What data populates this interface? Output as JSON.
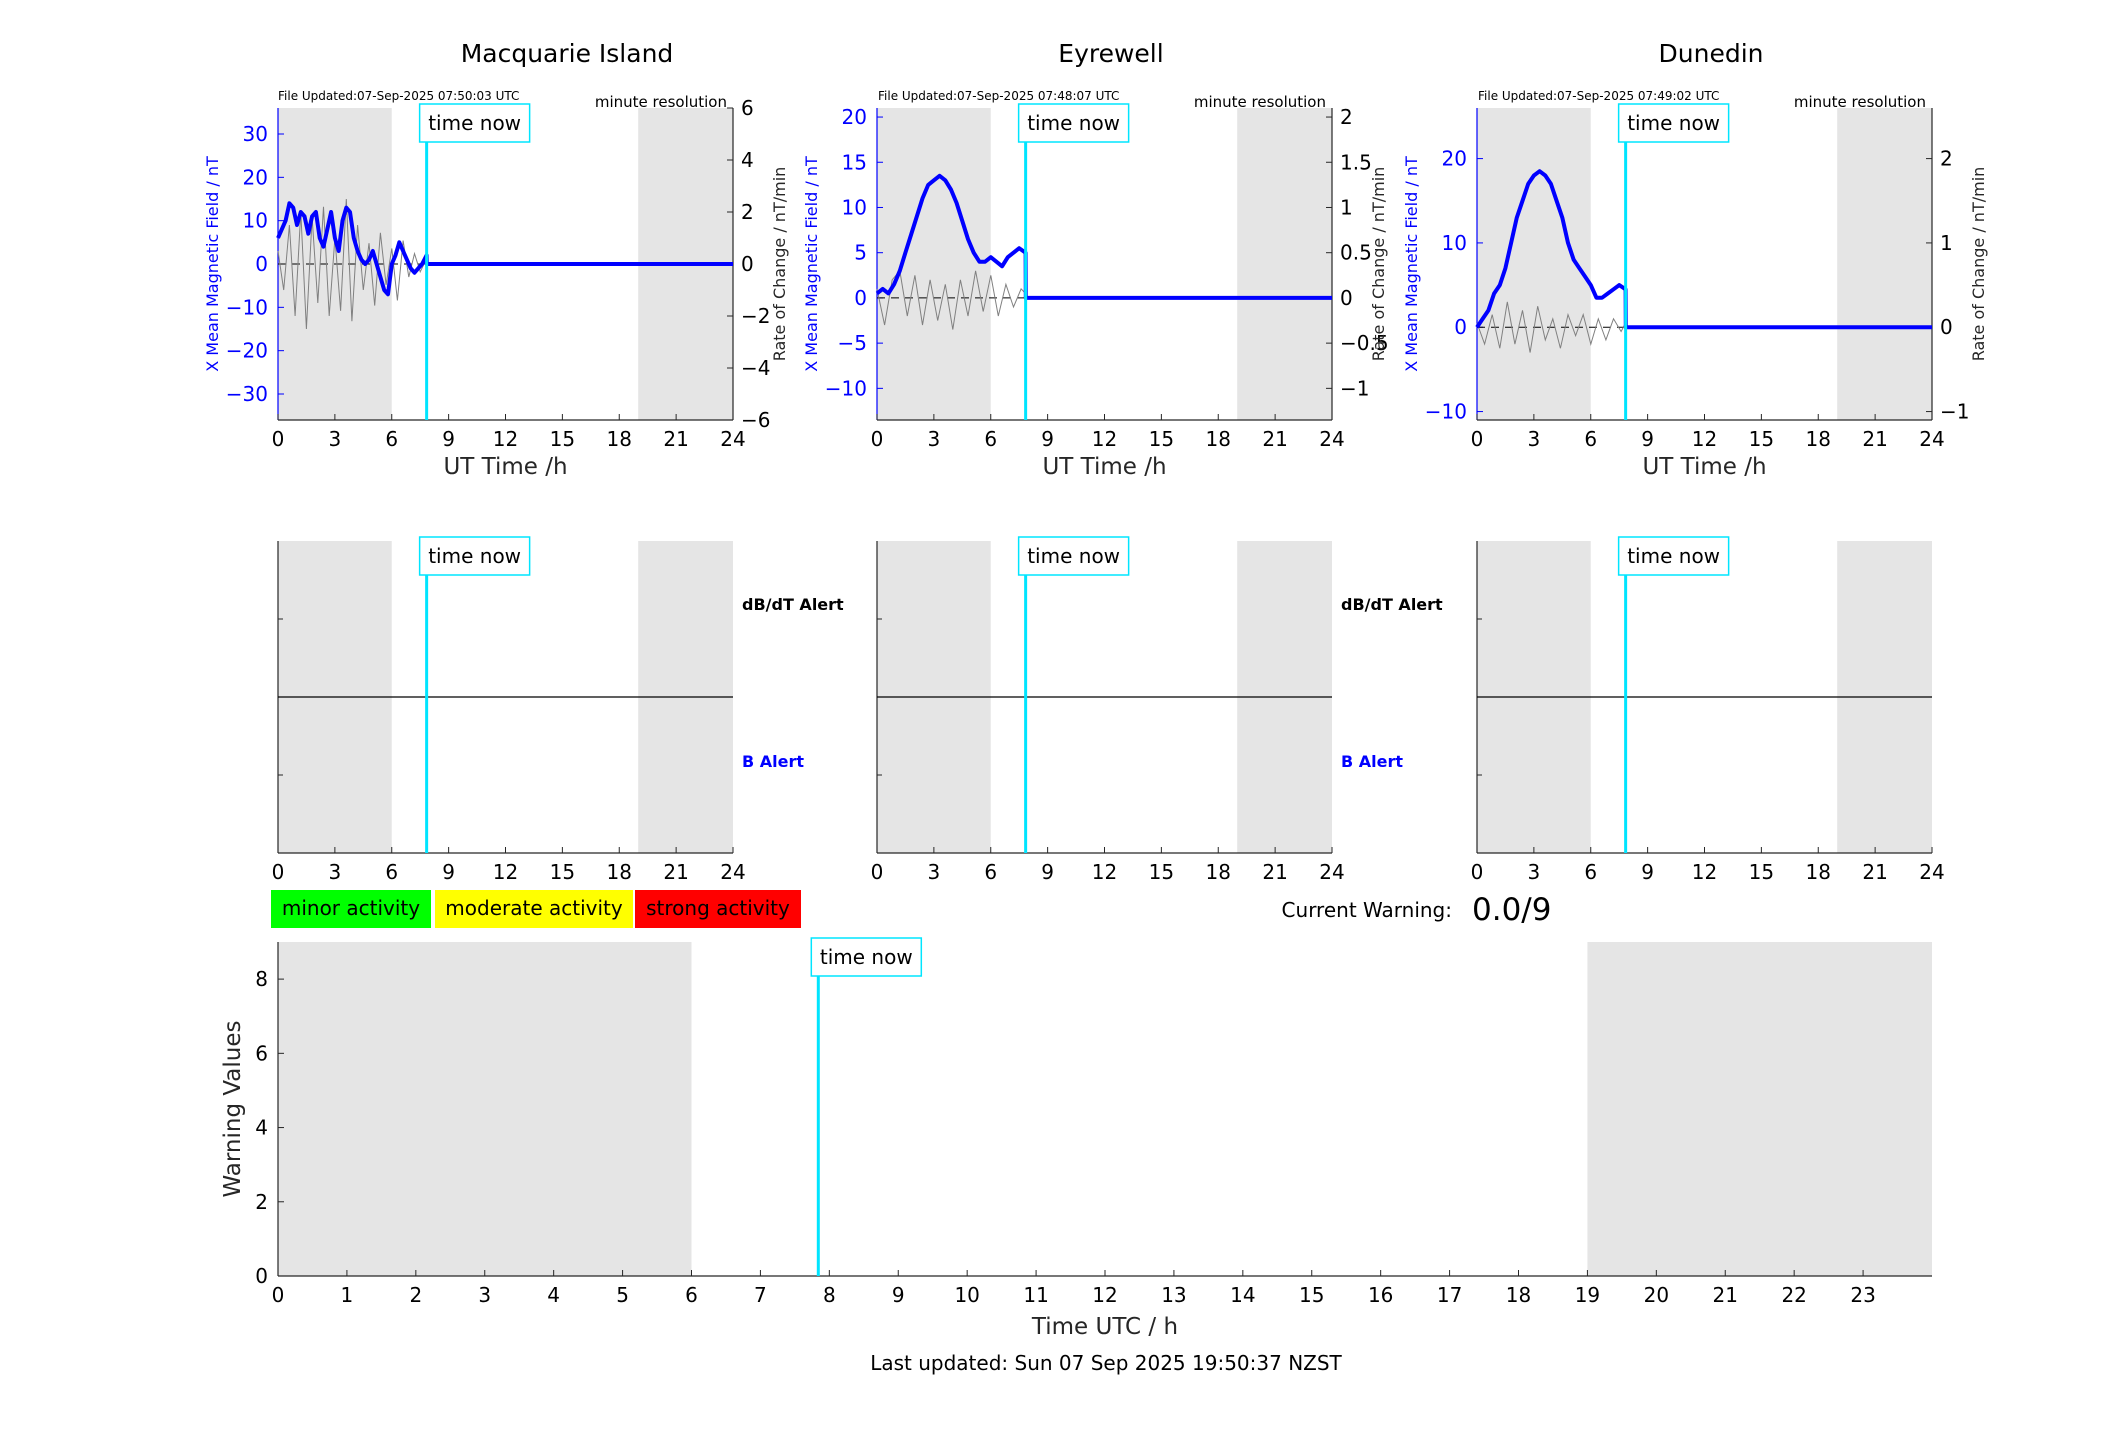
{
  "footer": {
    "last_updated": "Last updated: Sun 07 Sep 2025 19:50:37 NZST"
  },
  "legend_activity": [
    {
      "label": "minor activity",
      "color": "#00ff00"
    },
    {
      "label": "moderate activity",
      "color": "#ffff00"
    },
    {
      "label": "strong activity",
      "color": "#ff0000"
    }
  ],
  "current_warning": {
    "label": "Current Warning:",
    "value": "0.0/9"
  },
  "colors": {
    "field": "#0000ff",
    "rate": "#808080",
    "time_now": "#00e5ff",
    "shade": "#e5e5e5",
    "axis": "#262626"
  },
  "chart_data": [
    {
      "type": "line",
      "title": "Macquarie Island",
      "file_updated": "File Updated:07-Sep-2025 07:50:03 UTC",
      "resolution": "minute resolution",
      "time_now_label": "time now",
      "time_now": 7.84,
      "xlabel": "UT Time /h",
      "ylabel_left": "X Mean Magnetic Field / nT",
      "ylabel_right": "Rate of Change / nT/min",
      "xlim": [
        0,
        24
      ],
      "xticks": [
        0,
        3,
        6,
        9,
        12,
        15,
        18,
        21,
        24
      ],
      "ylim_left": [
        -36,
        36
      ],
      "yticks_left": [
        -30,
        -20,
        -10,
        0,
        10,
        20,
        30
      ],
      "ylim_right": [
        -6,
        6
      ],
      "yticks_right": [
        -6,
        -4,
        -2,
        0,
        2,
        4,
        6
      ],
      "shaded_ranges": [
        [
          0,
          6
        ],
        [
          19,
          24
        ]
      ],
      "field_series": {
        "x": [
          0,
          0.2,
          0.4,
          0.6,
          0.8,
          1.0,
          1.2,
          1.4,
          1.6,
          1.8,
          2.0,
          2.2,
          2.4,
          2.6,
          2.8,
          3.0,
          3.2,
          3.4,
          3.6,
          3.8,
          4.0,
          4.2,
          4.4,
          4.6,
          4.8,
          5.0,
          5.2,
          5.4,
          5.6,
          5.8,
          6.0,
          6.2,
          6.4,
          6.6,
          6.8,
          7.0,
          7.2,
          7.4,
          7.6,
          7.84,
          7.85,
          24
        ],
        "y": [
          6,
          8,
          10,
          14,
          13,
          9,
          12,
          11,
          7,
          11,
          12,
          6,
          4,
          8,
          12,
          6,
          3,
          10,
          13,
          12,
          6,
          3,
          1,
          0,
          1,
          3,
          0,
          -3,
          -6,
          -7,
          0,
          2,
          5,
          3,
          1,
          -1,
          -2,
          -1,
          0,
          2,
          0,
          0
        ]
      },
      "rate_series": {
        "x": [
          0,
          0.3,
          0.6,
          0.9,
          1.2,
          1.5,
          1.8,
          2.1,
          2.4,
          2.7,
          3.0,
          3.3,
          3.6,
          3.9,
          4.2,
          4.5,
          4.8,
          5.1,
          5.4,
          5.7,
          6.0,
          6.3,
          6.6,
          6.9,
          7.2,
          7.5,
          7.84
        ],
        "y": [
          0.5,
          -1.0,
          1.5,
          -2.0,
          2.0,
          -2.5,
          1.8,
          -1.5,
          2.2,
          -2.0,
          1.0,
          -1.8,
          2.5,
          -2.2,
          1.5,
          -1.0,
          0.8,
          -1.6,
          1.2,
          -0.8,
          0.6,
          -1.4,
          0.9,
          -0.5,
          0.4,
          -0.3,
          0.2
        ]
      }
    },
    {
      "type": "line",
      "title": "Eyrewell",
      "file_updated": "File Updated:07-Sep-2025 07:48:07 UTC",
      "resolution": "minute resolution",
      "time_now_label": "time now",
      "time_now": 7.84,
      "xlabel": "UT Time /h",
      "ylabel_left": "X Mean Magnetic Field / nT",
      "ylabel_right": "Rate of Change / nT/min",
      "xlim": [
        0,
        24
      ],
      "xticks": [
        0,
        3,
        6,
        9,
        12,
        15,
        18,
        21,
        24
      ],
      "ylim_left": [
        -13.5,
        21
      ],
      "yticks_left": [
        -10,
        -5,
        0,
        5,
        10,
        15,
        20
      ],
      "ylim_right": [
        -1.35,
        2.1
      ],
      "yticks_right": [
        -1,
        -0.5,
        0,
        0.5,
        1,
        1.5,
        2
      ],
      "shaded_ranges": [
        [
          0,
          6
        ],
        [
          19,
          24
        ]
      ],
      "field_series": {
        "x": [
          0,
          0.3,
          0.6,
          0.9,
          1.2,
          1.5,
          1.8,
          2.1,
          2.4,
          2.7,
          3.0,
          3.3,
          3.6,
          3.9,
          4.2,
          4.5,
          4.8,
          5.1,
          5.4,
          5.7,
          6.0,
          6.3,
          6.6,
          6.9,
          7.2,
          7.5,
          7.84,
          7.85,
          24
        ],
        "y": [
          0.5,
          1,
          0.5,
          1.5,
          3,
          5,
          7,
          9,
          11,
          12.5,
          13,
          13.5,
          13,
          12,
          10.5,
          8.5,
          6.5,
          5,
          4,
          4,
          4.5,
          4,
          3.5,
          4.5,
          5,
          5.5,
          5,
          0,
          0
        ]
      },
      "rate_series": {
        "x": [
          0,
          0.4,
          0.8,
          1.2,
          1.6,
          2.0,
          2.4,
          2.8,
          3.2,
          3.6,
          4.0,
          4.4,
          4.8,
          5.2,
          5.6,
          6.0,
          6.4,
          6.8,
          7.2,
          7.6,
          7.84
        ],
        "y": [
          0.1,
          -0.3,
          0.2,
          0.3,
          -0.2,
          0.25,
          -0.3,
          0.2,
          -0.25,
          0.15,
          -0.35,
          0.2,
          -0.2,
          0.3,
          -0.15,
          0.25,
          -0.2,
          0.15,
          -0.1,
          0.1,
          0.05
        ]
      }
    },
    {
      "type": "line",
      "title": "Dunedin",
      "file_updated": "File Updated:07-Sep-2025 07:49:02 UTC",
      "resolution": "minute resolution",
      "time_now_label": "time now",
      "time_now": 7.84,
      "xlabel": "UT Time /h",
      "ylabel_left": "X Mean Magnetic Field / nT",
      "ylabel_right": "Rate of Change / nT/min",
      "xlim": [
        0,
        24
      ],
      "xticks": [
        0,
        3,
        6,
        9,
        12,
        15,
        18,
        21,
        24
      ],
      "ylim_left": [
        -11,
        26
      ],
      "yticks_left": [
        -10,
        0,
        10,
        20
      ],
      "ylim_right": [
        -1.1,
        2.6
      ],
      "yticks_right": [
        -1,
        0,
        1,
        2
      ],
      "shaded_ranges": [
        [
          0,
          6
        ],
        [
          19,
          24
        ]
      ],
      "field_series": {
        "x": [
          0,
          0.3,
          0.6,
          0.9,
          1.2,
          1.5,
          1.8,
          2.1,
          2.4,
          2.7,
          3.0,
          3.3,
          3.6,
          3.9,
          4.2,
          4.5,
          4.8,
          5.1,
          5.4,
          5.7,
          6.0,
          6.3,
          6.6,
          6.9,
          7.2,
          7.5,
          7.84,
          7.85,
          24
        ],
        "y": [
          0,
          1,
          2,
          4,
          5,
          7,
          10,
          13,
          15,
          17,
          18,
          18.5,
          18,
          17,
          15,
          13,
          10,
          8,
          7,
          6,
          5,
          3.5,
          3.5,
          4,
          4.5,
          5,
          4.5,
          0,
          0
        ]
      },
      "rate_series": {
        "x": [
          0,
          0.4,
          0.8,
          1.2,
          1.6,
          2.0,
          2.4,
          2.8,
          3.2,
          3.6,
          4.0,
          4.4,
          4.8,
          5.2,
          5.6,
          6.0,
          6.4,
          6.8,
          7.2,
          7.6,
          7.84
        ],
        "y": [
          0.05,
          -0.2,
          0.15,
          -0.25,
          0.3,
          -0.2,
          0.2,
          -0.3,
          0.25,
          -0.15,
          0.1,
          -0.25,
          0.15,
          -0.1,
          0.15,
          -0.2,
          0.1,
          -0.15,
          0.1,
          -0.05,
          0.05
        ]
      }
    },
    {
      "type": "line",
      "title": "",
      "time_now_label": "time now",
      "time_now": 7.84,
      "label_top": "dB/dT Alert",
      "label_bottom": "B Alert",
      "xlim": [
        0,
        24
      ],
      "xticks": [
        0,
        3,
        6,
        9,
        12,
        15,
        18,
        21,
        24
      ],
      "shaded_ranges": [
        [
          0,
          6
        ],
        [
          19,
          24
        ]
      ],
      "divider": true
    },
    {
      "type": "line",
      "title": "",
      "time_now_label": "time now",
      "time_now": 7.84,
      "label_top": "dB/dT Alert",
      "label_bottom": "B Alert",
      "xlim": [
        0,
        24
      ],
      "xticks": [
        0,
        3,
        6,
        9,
        12,
        15,
        18,
        21,
        24
      ],
      "shaded_ranges": [
        [
          0,
          6
        ],
        [
          19,
          24
        ]
      ],
      "divider": true
    },
    {
      "type": "line",
      "title": "",
      "time_now_label": "time now",
      "time_now": 7.84,
      "xlim": [
        0,
        24
      ],
      "xticks": [
        0,
        3,
        6,
        9,
        12,
        15,
        18,
        21,
        24
      ],
      "shaded_ranges": [
        [
          0,
          6
        ],
        [
          19,
          24
        ]
      ],
      "divider": true
    },
    {
      "type": "bar",
      "title": "",
      "time_now_label": "time now",
      "time_now": 7.84,
      "xlabel": "Time UTC / h",
      "ylabel": "Warning Values",
      "xlim": [
        0,
        24
      ],
      "xticks": [
        0,
        1,
        2,
        3,
        4,
        5,
        6,
        7,
        8,
        9,
        10,
        11,
        12,
        13,
        14,
        15,
        16,
        17,
        18,
        19,
        20,
        21,
        22,
        23
      ],
      "ylim": [
        0,
        9
      ],
      "yticks": [
        0,
        2,
        4,
        6,
        8
      ],
      "shaded_ranges": [
        [
          0,
          6
        ],
        [
          19,
          24
        ]
      ],
      "values": []
    }
  ]
}
